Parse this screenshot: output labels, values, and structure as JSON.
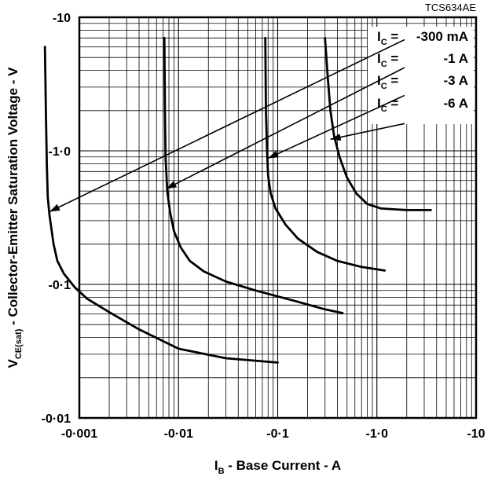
{
  "chart_data": {
    "type": "line",
    "code": "TCS634AE",
    "x_scale": "log",
    "y_scale": "log",
    "xlim": [
      -0.001,
      -10
    ],
    "ylim": [
      -0.01,
      -10
    ],
    "grid": true,
    "x_ticks": [
      "-0·001",
      "-0·01",
      "-0·1",
      "-1·0",
      "-10"
    ],
    "y_ticks": [
      "-10",
      "-1·0",
      "-0·1",
      "-0·01"
    ],
    "xlabel": {
      "main": "I",
      "sub": "B",
      "rest": " - Base Current - A"
    },
    "ylabel": {
      "main": "V",
      "sub": "CE(sat)",
      "rest": " - Collector-Emitter Saturation Voltage - V"
    },
    "series": [
      {
        "name": "I_C = -300 mA",
        "label": {
          "pre": "I",
          "sub": "C",
          "eq": " = ",
          "val": "-300 mA"
        },
        "points": [
          [
            -0.00045,
            -6.0
          ],
          [
            -0.00046,
            -2.0
          ],
          [
            -0.00047,
            -0.8
          ],
          [
            -0.00048,
            -0.45
          ],
          [
            -0.0005,
            -0.33
          ],
          [
            -0.00055,
            -0.2
          ],
          [
            -0.0006,
            -0.15
          ],
          [
            -0.0007,
            -0.12
          ],
          [
            -0.0009,
            -0.095
          ],
          [
            -0.0012,
            -0.078
          ],
          [
            -0.002,
            -0.062
          ],
          [
            -0.004,
            -0.046
          ],
          [
            -0.01,
            -0.033
          ],
          [
            -0.03,
            -0.028
          ],
          [
            -0.1,
            -0.026
          ]
        ]
      },
      {
        "name": "I_C = -1 A",
        "label": {
          "pre": "I",
          "sub": "C",
          "eq": " = ",
          "val": "-1 A"
        },
        "points": [
          [
            -0.0072,
            -7.0
          ],
          [
            -0.0073,
            -2.0
          ],
          [
            -0.0074,
            -0.9
          ],
          [
            -0.0077,
            -0.5
          ],
          [
            -0.0082,
            -0.35
          ],
          [
            -0.009,
            -0.25
          ],
          [
            -0.0105,
            -0.19
          ],
          [
            -0.013,
            -0.15
          ],
          [
            -0.018,
            -0.125
          ],
          [
            -0.03,
            -0.105
          ],
          [
            -0.06,
            -0.09
          ],
          [
            -0.15,
            -0.075
          ],
          [
            -0.3,
            -0.065
          ],
          [
            -0.45,
            -0.061
          ]
        ]
      },
      {
        "name": "I_C = -3 A",
        "label": {
          "pre": "I",
          "sub": "C",
          "eq": " = ",
          "val": "-3 A"
        },
        "points": [
          [
            -0.075,
            -7.0
          ],
          [
            -0.076,
            -2.0
          ],
          [
            -0.078,
            -1.0
          ],
          [
            -0.08,
            -0.65
          ],
          [
            -0.085,
            -0.48
          ],
          [
            -0.095,
            -0.37
          ],
          [
            -0.12,
            -0.28
          ],
          [
            -0.16,
            -0.22
          ],
          [
            -0.25,
            -0.175
          ],
          [
            -0.4,
            -0.15
          ],
          [
            -0.7,
            -0.135
          ],
          [
            -1.2,
            -0.127
          ]
        ]
      },
      {
        "name": "I_C = -6 A",
        "label": {
          "pre": "I",
          "sub": "C",
          "eq": " = ",
          "val": "-6 A"
        },
        "points": [
          [
            -0.3,
            -7.0
          ],
          [
            -0.32,
            -3.5
          ],
          [
            -0.34,
            -2.0
          ],
          [
            -0.37,
            -1.3
          ],
          [
            -0.42,
            -0.9
          ],
          [
            -0.5,
            -0.63
          ],
          [
            -0.62,
            -0.48
          ],
          [
            -0.8,
            -0.4
          ],
          [
            -1.1,
            -0.37
          ],
          [
            -2.0,
            -0.36
          ],
          [
            -3.5,
            -0.36
          ]
        ]
      }
    ],
    "arrows": [
      {
        "from": [
          -1.9,
          -6.8
        ],
        "to": [
          -0.0005,
          -0.35
        ]
      },
      {
        "from": [
          -1.9,
          -4.2
        ],
        "to": [
          -0.0075,
          -0.52
        ]
      },
      {
        "from": [
          -1.9,
          -2.6
        ],
        "to": [
          -0.08,
          -0.88
        ]
      },
      {
        "from": [
          -1.9,
          -1.6
        ],
        "to": [
          -0.34,
          -1.22
        ]
      }
    ]
  }
}
